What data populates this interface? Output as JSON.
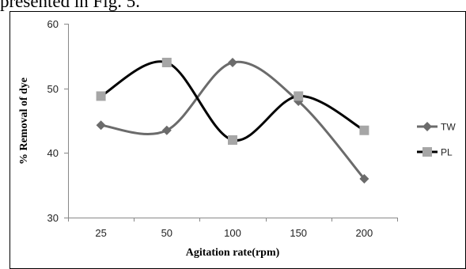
{
  "caption_fragment": "presented in Fig. 5.",
  "chart_data": {
    "type": "line",
    "title": "",
    "xlabel": "Agitation rate(rpm)",
    "ylabel": "% Removal of dye",
    "categories": [
      "25",
      "50",
      "100",
      "150",
      "200"
    ],
    "ylim": [
      30,
      60
    ],
    "yticks": [
      30,
      40,
      50,
      60
    ],
    "grid": false,
    "legend_position": "right",
    "series": [
      {
        "name": "TW",
        "values": [
          44.3,
          43.5,
          54.0,
          48.0,
          36.0
        ],
        "color": "#6b6b6b",
        "marker": "diamond"
      },
      {
        "name": "PL",
        "values": [
          48.8,
          54.0,
          42.0,
          48.8,
          43.5
        ],
        "color": "#000000",
        "marker": "square",
        "marker_color": "#a6a6a6"
      }
    ]
  }
}
